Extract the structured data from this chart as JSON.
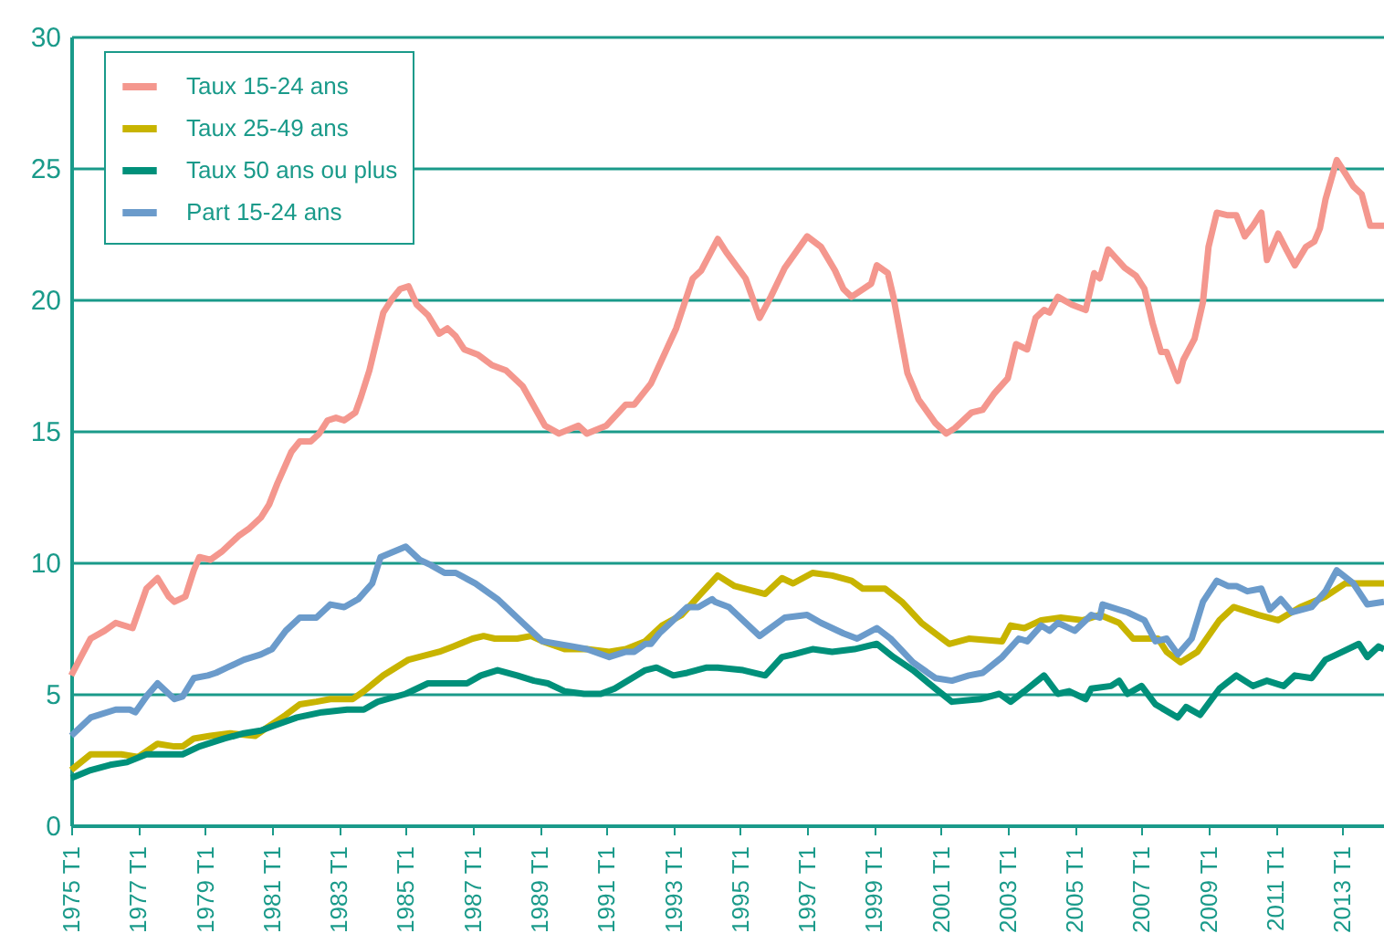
{
  "chart_data": {
    "type": "line",
    "xlim": [
      "1975-01",
      "2014-04"
    ],
    "ylim": [
      0,
      30
    ],
    "yticks": [
      0,
      5,
      10,
      15,
      20,
      25,
      30
    ],
    "xticks": [
      {
        "value": "1975-01",
        "label": "1975 T1"
      },
      {
        "value": "1977-01",
        "label": "1977 T1"
      },
      {
        "value": "1979-01",
        "label": "1979 T1"
      },
      {
        "value": "1981-01",
        "label": "1981 T1"
      },
      {
        "value": "1983-01",
        "label": "1983 T1"
      },
      {
        "value": "1985-01",
        "label": "1985 T1"
      },
      {
        "value": "1987-01",
        "label": "1987 T1"
      },
      {
        "value": "1989-01",
        "label": "1989 T1"
      },
      {
        "value": "1991-01",
        "label": "1991 T1"
      },
      {
        "value": "1993-01",
        "label": "1993 T1"
      },
      {
        "value": "1995-01",
        "label": "1995 T1"
      },
      {
        "value": "1997-01",
        "label": "1997 T1"
      },
      {
        "value": "1999-01",
        "label": "1999 T1"
      },
      {
        "value": "2001-01",
        "label": "2001 T1"
      },
      {
        "value": "2003-01",
        "label": "2003 T1"
      },
      {
        "value": "2005-01",
        "label": "2005 T1"
      },
      {
        "value": "2007-01",
        "label": "2007 T1"
      },
      {
        "value": "2009-01",
        "label": "2009 T1"
      },
      {
        "value": "2011-01",
        "label": "2011 T1"
      },
      {
        "value": "2013-01",
        "label": "2013 T1"
      }
    ],
    "grid": "y",
    "legend": "top left",
    "line_style": "solid",
    "series": [
      {
        "name": "Taux 15-24 ans",
        "color": "#f4978e",
        "x": [
          "1975-01",
          "1975-05",
          "1975-08",
          "1976-01",
          "1976-05",
          "1976-11",
          "1977-04",
          "1977-08",
          "1977-12",
          "1978-02",
          "1978-06",
          "1978-09",
          "1978-11",
          "1979-03",
          "1979-07",
          "1980-01",
          "1980-05",
          "1980-09",
          "1980-12",
          "1981-03",
          "1981-08",
          "1981-11",
          "1982-03",
          "1982-06",
          "1982-09",
          "1982-12",
          "1983-03",
          "1983-07",
          "1983-09",
          "1983-12",
          "1984-05",
          "1984-08",
          "1984-11",
          "1985-02",
          "1985-05",
          "1985-09",
          "1986-01",
          "1986-04",
          "1986-07",
          "1986-10",
          "1987-03",
          "1987-08",
          "1988-01",
          "1988-07",
          "1989-03",
          "1989-08",
          "1990-03",
          "1990-06",
          "1991-01",
          "1991-08",
          "1991-11",
          "1992-05",
          "1993-02",
          "1993-08",
          "1993-11",
          "1994-05",
          "1994-08",
          "1995-03",
          "1995-08",
          "1995-12",
          "1996-05",
          "1997-01",
          "1997-06",
          "1997-11",
          "1998-02",
          "1998-05",
          "1998-12",
          "1999-02",
          "1999-06",
          "1999-08",
          "2000-01",
          "2000-05",
          "2000-11",
          "2001-03",
          "2001-06",
          "2001-12",
          "2002-04",
          "2002-08",
          "2003-01",
          "2003-04",
          "2003-08",
          "2003-11",
          "2004-02",
          "2004-04",
          "2004-07",
          "2004-12",
          "2005-05",
          "2005-08",
          "2005-10",
          "2006-01",
          "2006-07",
          "2006-11",
          "2007-02",
          "2007-05",
          "2007-08",
          "2007-10",
          "2008-02",
          "2008-04",
          "2008-08",
          "2008-11",
          "2009-01",
          "2009-04",
          "2009-08",
          "2009-11",
          "2010-02",
          "2010-05",
          "2010-08",
          "2010-10",
          "2011-02",
          "2011-05",
          "2011-08",
          "2011-12",
          "2012-03",
          "2012-05",
          "2012-07",
          "2012-11",
          "2013-02",
          "2013-05",
          "2013-08",
          "2013-11",
          "2014-02",
          "2014-04"
        ],
        "values": [
          5.7,
          6.5,
          7.1,
          7.4,
          7.7,
          7.5,
          9.0,
          9.4,
          8.7,
          8.5,
          8.7,
          9.7,
          10.2,
          10.1,
          10.4,
          11.0,
          11.3,
          11.7,
          12.2,
          13.0,
          14.2,
          14.6,
          14.6,
          14.9,
          15.4,
          15.5,
          15.4,
          15.7,
          16.3,
          17.3,
          19.5,
          20.0,
          20.4,
          20.5,
          19.8,
          19.4,
          18.7,
          18.9,
          18.6,
          18.1,
          17.9,
          17.5,
          17.3,
          16.7,
          15.2,
          14.9,
          15.2,
          14.9,
          15.2,
          16.0,
          16.0,
          16.8,
          18.9,
          20.8,
          21.1,
          22.3,
          21.8,
          20.8,
          19.3,
          20.1,
          21.2,
          22.4,
          22.0,
          21.1,
          20.4,
          20.1,
          20.6,
          21.3,
          21.0,
          20.1,
          17.2,
          16.2,
          15.3,
          14.9,
          15.1,
          15.7,
          15.8,
          16.4,
          17.0,
          18.3,
          18.1,
          19.3,
          19.6,
          19.5,
          20.1,
          19.8,
          19.6,
          21.0,
          20.8,
          21.9,
          21.2,
          20.9,
          20.4,
          19.1,
          18.0,
          18.0,
          16.9,
          17.7,
          18.5,
          19.9,
          22.0,
          23.3,
          23.2,
          23.2,
          22.4,
          22.8,
          23.3,
          21.5,
          22.5,
          21.9,
          21.3,
          22.0,
          22.2,
          22.7,
          23.8,
          25.3,
          24.8,
          24.3,
          24.0,
          22.8,
          22.8,
          22.8
        ]
      },
      {
        "name": "Taux 25-49 ans",
        "color": "#c8b400",
        "x": [
          "1975-01",
          "1975-08",
          "1976-07",
          "1977-01",
          "1977-08",
          "1978-02",
          "1978-05",
          "1978-09",
          "1979-03",
          "1979-10",
          "1980-07",
          "1980-11",
          "1981-06",
          "1981-11",
          "1982-05",
          "1982-10",
          "1983-06",
          "1983-10",
          "1984-05",
          "1985-02",
          "1986-01",
          "1986-06",
          "1987-01",
          "1987-05",
          "1987-09",
          "1988-05",
          "1988-10",
          "1989-02",
          "1989-10",
          "1990-06",
          "1991-02",
          "1991-08",
          "1992-03",
          "1992-09",
          "1993-04",
          "1993-10",
          "1994-05",
          "1994-11",
          "1995-10",
          "1996-04",
          "1996-08",
          "1997-03",
          "1997-10",
          "1998-05",
          "1998-09",
          "1999-05",
          "1999-11",
          "2000-06",
          "2001-04",
          "2001-11",
          "2002-11",
          "2003-02",
          "2003-07",
          "2004-01",
          "2004-08",
          "2005-04",
          "2005-10",
          "2006-05",
          "2006-10",
          "2007-07",
          "2007-10",
          "2008-03",
          "2008-09",
          "2009-05",
          "2009-10",
          "2010-07",
          "2011-02",
          "2011-10",
          "2012-07",
          "2013-02",
          "2013-10",
          "2014-04"
        ],
        "values": [
          2.1,
          2.7,
          2.7,
          2.6,
          3.1,
          3.0,
          3.0,
          3.3,
          3.4,
          3.5,
          3.4,
          3.7,
          4.2,
          4.6,
          4.7,
          4.8,
          4.8,
          5.1,
          5.7,
          6.3,
          6.6,
          6.8,
          7.1,
          7.2,
          7.1,
          7.1,
          7.2,
          7.0,
          6.7,
          6.7,
          6.6,
          6.7,
          7.0,
          7.6,
          8.0,
          8.7,
          9.5,
          9.1,
          8.8,
          9.4,
          9.2,
          9.6,
          9.5,
          9.3,
          9.0,
          9.0,
          8.5,
          7.7,
          6.9,
          7.1,
          7.0,
          7.6,
          7.5,
          7.8,
          7.9,
          7.8,
          8.0,
          7.7,
          7.1,
          7.1,
          6.6,
          6.2,
          6.6,
          7.8,
          8.3,
          8.0,
          7.8,
          8.3,
          8.7,
          9.2,
          9.2,
          9.2
        ]
      },
      {
        "name": "Taux 50 ans ou plus",
        "color": "#00907a",
        "x": [
          "1975-01",
          "1975-08",
          "1976-03",
          "1976-09",
          "1977-04",
          "1977-10",
          "1978-05",
          "1978-11",
          "1979-08",
          "1980-03",
          "1980-09",
          "1981-02",
          "1981-10",
          "1982-07",
          "1983-04",
          "1983-10",
          "1984-03",
          "1985-01",
          "1985-09",
          "1986-05",
          "1986-11",
          "1987-04",
          "1987-10",
          "1988-05",
          "1988-11",
          "1989-04",
          "1989-10",
          "1990-05",
          "1990-11",
          "1991-04",
          "1992-03",
          "1992-07",
          "1993-01",
          "1993-06",
          "1994-01",
          "1994-05",
          "1995-02",
          "1995-10",
          "1996-04",
          "1996-08",
          "1997-03",
          "1997-10",
          "1998-06",
          "1999-02",
          "1999-08",
          "2000-03",
          "2000-11",
          "2001-05",
          "2002-03",
          "2002-10",
          "2003-02",
          "2003-07",
          "2004-02",
          "2004-07",
          "2004-11",
          "2005-05",
          "2005-07",
          "2006-02",
          "2006-05",
          "2006-08",
          "2007-01",
          "2007-06",
          "2008-02",
          "2008-05",
          "2008-10",
          "2009-05",
          "2009-11",
          "2010-05",
          "2010-10",
          "2011-04",
          "2011-08",
          "2012-02",
          "2012-07",
          "2012-11",
          "2013-07",
          "2013-10",
          "2014-02",
          "2014-04"
        ],
        "values": [
          1.8,
          2.1,
          2.3,
          2.4,
          2.7,
          2.7,
          2.7,
          3.0,
          3.3,
          3.5,
          3.6,
          3.8,
          4.1,
          4.3,
          4.4,
          4.4,
          4.7,
          5.0,
          5.4,
          5.4,
          5.4,
          5.7,
          5.9,
          5.7,
          5.5,
          5.4,
          5.1,
          5.0,
          5.0,
          5.2,
          5.9,
          6.0,
          5.7,
          5.8,
          6.0,
          6.0,
          5.9,
          5.7,
          6.4,
          6.5,
          6.7,
          6.6,
          6.7,
          6.9,
          6.4,
          5.9,
          5.2,
          4.7,
          4.8,
          5.0,
          4.7,
          5.1,
          5.7,
          5.0,
          5.1,
          4.8,
          5.2,
          5.3,
          5.5,
          5.0,
          5.3,
          4.6,
          4.1,
          4.5,
          4.2,
          5.2,
          5.7,
          5.3,
          5.5,
          5.3,
          5.7,
          5.6,
          6.3,
          6.5,
          6.9,
          6.4,
          6.8,
          6.7
        ]
      },
      {
        "name": "Part 15-24 ans",
        "color": "#6b9bcb",
        "x": [
          "1975-01",
          "1975-08",
          "1976-05",
          "1976-10",
          "1976-12",
          "1977-04",
          "1977-08",
          "1978-02",
          "1978-05",
          "1978-09",
          "1979-02",
          "1979-05",
          "1979-09",
          "1980-03",
          "1980-09",
          "1981-01",
          "1981-06",
          "1981-11",
          "1982-05",
          "1982-10",
          "1983-03",
          "1983-08",
          "1984-01",
          "1984-04",
          "1985-01",
          "1985-06",
          "1985-10",
          "1986-03",
          "1986-07",
          "1987-02",
          "1987-10",
          "1988-07",
          "1989-02",
          "1990-01",
          "1990-06",
          "1991-02",
          "1991-08",
          "1991-11",
          "1992-03",
          "1992-05",
          "1992-08",
          "1992-11",
          "1993-06",
          "1993-10",
          "1994-03",
          "1994-04",
          "1994-09",
          "1995-08",
          "1996-05",
          "1997-01",
          "1997-06",
          "1998-02",
          "1998-07",
          "1999-02",
          "1999-07",
          "2000-03",
          "2000-11",
          "2001-05",
          "2001-11",
          "2002-04",
          "2002-11",
          "2003-05",
          "2003-08",
          "2004-01",
          "2004-04",
          "2004-07",
          "2005-01",
          "2005-07",
          "2005-10",
          "2005-11",
          "2006-08",
          "2007-02",
          "2007-06",
          "2007-10",
          "2008-02",
          "2008-07",
          "2008-11",
          "2009-04",
          "2009-08",
          "2009-11",
          "2010-03",
          "2010-08",
          "2010-11",
          "2011-03",
          "2011-07",
          "2012-02",
          "2012-07",
          "2012-11",
          "2013-05",
          "2013-10",
          "2014-04"
        ],
        "values": [
          3.4,
          4.1,
          4.4,
          4.4,
          4.3,
          4.9,
          5.4,
          4.8,
          4.9,
          5.6,
          5.7,
          5.8,
          6.0,
          6.3,
          6.5,
          6.7,
          7.4,
          7.9,
          7.9,
          8.4,
          8.3,
          8.6,
          9.2,
          10.2,
          10.6,
          10.1,
          9.9,
          9.6,
          9.6,
          9.2,
          8.6,
          7.7,
          7.0,
          6.8,
          6.7,
          6.4,
          6.6,
          6.6,
          6.9,
          6.9,
          7.3,
          7.6,
          8.3,
          8.3,
          8.6,
          8.5,
          8.3,
          7.2,
          7.9,
          8.0,
          7.7,
          7.3,
          7.1,
          7.5,
          7.1,
          6.2,
          5.6,
          5.5,
          5.7,
          5.8,
          6.4,
          7.1,
          7.0,
          7.6,
          7.4,
          7.7,
          7.4,
          8.0,
          7.9,
          8.4,
          8.1,
          7.8,
          7.0,
          7.1,
          6.5,
          7.1,
          8.5,
          9.3,
          9.1,
          9.1,
          8.9,
          9.0,
          8.2,
          8.6,
          8.1,
          8.3,
          8.9,
          9.7,
          9.2,
          8.4,
          8.5
        ]
      }
    ]
  }
}
